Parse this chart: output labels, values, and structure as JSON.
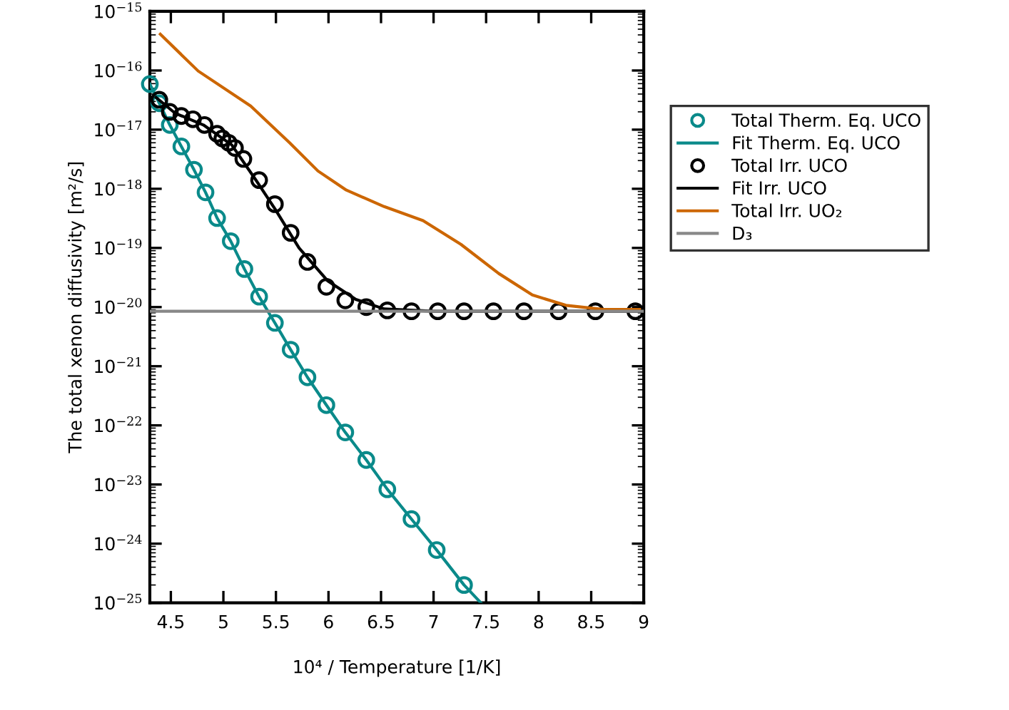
{
  "chart_data": {
    "type": "scatter",
    "xlabel": "10⁴ / Temperature [1/K]",
    "ylabel": "The total xenon diffusivity [m²/s]",
    "log": "y",
    "xlim": [
      4.3,
      9
    ],
    "xticks": [
      4.5,
      5,
      5.5,
      6,
      6.5,
      7,
      7.5,
      8,
      8.5,
      9
    ],
    "ylim": [
      1e-25,
      1e-15
    ],
    "yticks": [
      {
        "value": 1e-25,
        "label": "10$^{−25}$"
      },
      {
        "value": 1e-24,
        "label": "10$^{−24}$"
      },
      {
        "value": 1e-23,
        "label": "10$^{−23}$"
      },
      {
        "value": 1e-22,
        "label": "10$^{−22}$"
      },
      {
        "value": 1e-21,
        "label": "10$^{−21}$"
      },
      {
        "value": 1e-20,
        "label": "10$^{−20}$"
      },
      {
        "value": 1e-19,
        "label": "10$^{−19}$"
      },
      {
        "value": 1e-18,
        "label": "10$^{−18}$"
      },
      {
        "value": 1e-17,
        "label": "10$^{−17}$"
      },
      {
        "value": 1e-16,
        "label": "10$^{−16}$"
      },
      {
        "value": 1e-15,
        "label": "10$^{−15}$"
      }
    ],
    "grid": false,
    "legend": "top right",
    "series": [
      {
        "name": "Total Therm. Eq. UCO",
        "type": "scatter",
        "marker": "circle",
        "color": "#0a8a8a",
        "x": [
          4.3,
          4.39,
          4.49,
          4.6,
          4.72,
          4.83,
          4.94,
          5.07,
          5.2,
          5.34,
          5.49,
          5.64,
          5.8,
          5.98,
          6.16,
          6.36,
          6.56,
          6.79,
          7.03,
          7.29
        ],
        "values": [
          5.9e-17,
          2.8e-17,
          1.2e-17,
          5.2e-18,
          2.1e-18,
          8.7e-19,
          3.2e-19,
          1.3e-19,
          4.4e-20,
          1.5e-20,
          5.4e-21,
          1.9e-21,
          6.5e-22,
          2.2e-22,
          7.6e-23,
          2.6e-23,
          8.3e-24,
          2.6e-24,
          7.8e-25,
          2e-25
        ]
      },
      {
        "name": "Fit Therm. Eq. UCO",
        "type": "line",
        "color": "#0a8a8a",
        "x": [
          4.3,
          4.39,
          4.49,
          4.6,
          4.72,
          4.83,
          4.94,
          5.07,
          5.2,
          5.34,
          5.49,
          5.64,
          5.8,
          5.98,
          6.16,
          6.36,
          6.56,
          6.79,
          7.03,
          7.29,
          7.45
        ],
        "values": [
          5.9e-17,
          2.8e-17,
          1.2e-17,
          5.2e-18,
          2.1e-18,
          8.7e-19,
          3.2e-19,
          1.3e-19,
          4.4e-20,
          1.5e-20,
          5.4e-21,
          1.9e-21,
          6.5e-22,
          2.2e-22,
          7.6e-23,
          2.6e-23,
          8.3e-24,
          2.6e-24,
          7.8e-25,
          2e-25,
          1e-25
        ]
      },
      {
        "name": "Total Irr. UCO",
        "type": "scatter",
        "marker": "circle",
        "color": "#000000",
        "x": [
          4.39,
          4.49,
          4.6,
          4.71,
          4.82,
          4.94,
          4.99,
          5.05,
          5.11,
          5.19,
          5.34,
          5.49,
          5.64,
          5.8,
          5.98,
          6.16,
          6.36,
          6.56,
          6.79,
          7.04,
          7.29,
          7.57,
          7.86,
          8.19,
          8.54,
          8.92
        ],
        "values": [
          3.2e-17,
          2e-17,
          1.7e-17,
          1.5e-17,
          1.2e-17,
          8.5e-18,
          7.1e-18,
          6e-18,
          4.9e-18,
          3.2e-18,
          1.4e-18,
          5.5e-19,
          1.8e-19,
          5.8e-20,
          2.2e-20,
          1.3e-20,
          1e-20,
          8.8e-21,
          8.5e-21,
          8.5e-21,
          8.5e-21,
          8.5e-21,
          8.5e-21,
          8.5e-21,
          8.5e-21,
          8.5e-21
        ]
      },
      {
        "name": "Fit Irr. UCO",
        "type": "line",
        "color": "#000000",
        "x": [
          4.36,
          4.54,
          4.81,
          5.08,
          5.31,
          5.49,
          5.72,
          5.99,
          6.26,
          6.53,
          7.0,
          9.0
        ],
        "values": [
          3.5e-17,
          1.9e-17,
          1.2e-17,
          5.5e-18,
          1.4e-18,
          4.6e-19,
          1e-19,
          2.8e-20,
          1.35e-20,
          9.3e-21,
          8.5e-21,
          8.5e-21
        ]
      },
      {
        "name": "Total Irr. UO₂",
        "type": "line",
        "color": "#cc6600",
        "x": [
          4.4,
          4.76,
          5.26,
          5.63,
          5.9,
          6.17,
          6.53,
          6.9,
          7.26,
          7.62,
          7.94,
          8.26,
          8.62,
          8.96
        ],
        "values": [
          4.1e-16,
          9.8e-17,
          2.5e-17,
          6e-18,
          2e-18,
          9.5e-19,
          5e-19,
          2.9e-19,
          1.15e-19,
          3.7e-20,
          1.6e-20,
          1.07e-20,
          9.1e-21,
          9.1e-21
        ]
      },
      {
        "name": "D₃",
        "type": "line",
        "color": "#888888",
        "x": [
          4.3,
          9.0
        ],
        "values": [
          8.5e-21,
          8.5e-21
        ]
      }
    ]
  }
}
